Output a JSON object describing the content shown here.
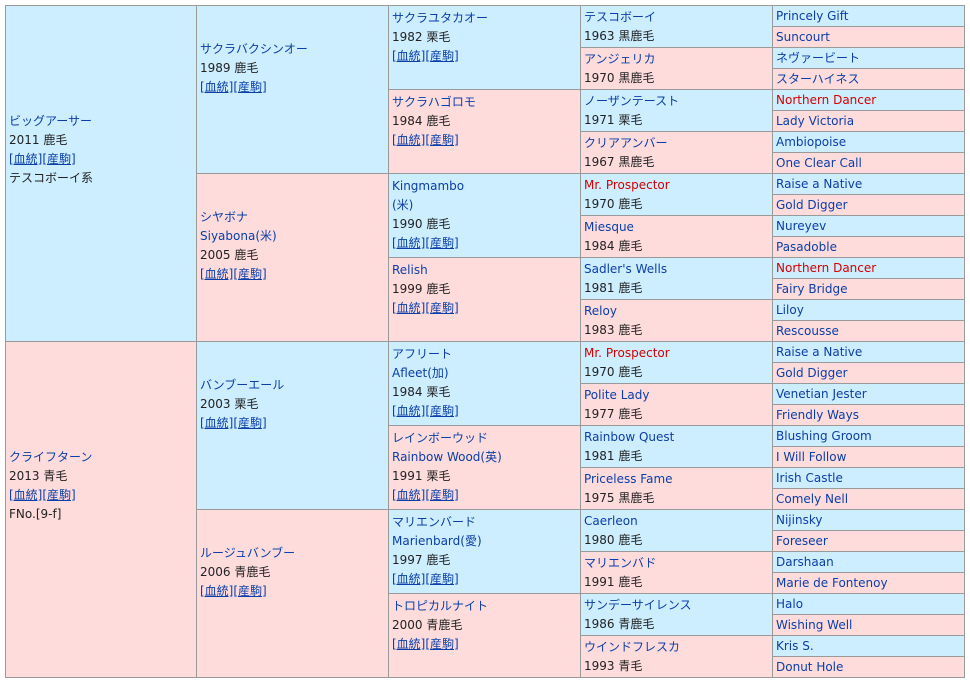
{
  "colors": {
    "male_bg": "#cdeeff",
    "female_bg": "#ffdcdc",
    "link": "#0a3ea8",
    "highlight": "#d40000",
    "border": "#9a9a9a"
  },
  "pedigree": {
    "g1": [
      {
        "name": "ビッグアーサー",
        "year_color": "2011 鹿毛",
        "links": [
          "[血統]",
          "[産駒]"
        ],
        "note": "テスコボーイ系",
        "sex": "m"
      },
      {
        "name": "クライフターン",
        "year_color": "2013 青毛",
        "links": [
          "[血統]",
          "[産駒]"
        ],
        "note": "FNo.[9-f]",
        "sex": "f"
      }
    ],
    "g2": [
      {
        "name": "サクラバクシンオー",
        "year_color": "1989 鹿毛",
        "links": [
          "[血統]",
          "[産駒]"
        ],
        "sex": "m"
      },
      {
        "name": "シヤボナ",
        "alt": "Siyabona(米)",
        "year_color": "2005 鹿毛",
        "links": [
          "[血統]",
          "[産駒]"
        ],
        "sex": "f"
      },
      {
        "name": "バンブーエール",
        "year_color": "2003 栗毛",
        "links": [
          "[血統]",
          "[産駒]"
        ],
        "sex": "m"
      },
      {
        "name": "ルージュバンブー",
        "year_color": "2006 青鹿毛",
        "links": [
          "[血統]",
          "[産駒]"
        ],
        "sex": "f"
      }
    ],
    "g3": [
      {
        "name": "サクラユタカオー",
        "year_color": "1982 栗毛",
        "links": [
          "[血統]",
          "[産駒]"
        ],
        "sex": "m"
      },
      {
        "name": "サクラハゴロモ",
        "year_color": "1984 鹿毛",
        "links": [
          "[血統]",
          "[産駒]"
        ],
        "sex": "f"
      },
      {
        "name": "Kingmambo",
        "alt": "(米)",
        "year_color": "1990 鹿毛",
        "links": [
          "[血統]",
          "[産駒]"
        ],
        "sex": "m"
      },
      {
        "name": "Relish",
        "year_color": "1999 鹿毛",
        "links": [
          "[血統]",
          "[産駒]"
        ],
        "sex": "f"
      },
      {
        "name": "アフリート",
        "alt": "Afleet(加)",
        "year_color": "1984 栗毛",
        "links": [
          "[血統]",
          "[産駒]"
        ],
        "sex": "m"
      },
      {
        "name": "レインボーウッド",
        "alt": "Rainbow Wood(英)",
        "year_color": "1991 栗毛",
        "links": [
          "[血統]",
          "[産駒]"
        ],
        "sex": "f"
      },
      {
        "name": "マリエンバード",
        "alt": "Marienbard(愛)",
        "year_color": "1997 鹿毛",
        "links": [
          "[血統]",
          "[産駒]"
        ],
        "sex": "m"
      },
      {
        "name": "トロピカルナイト",
        "year_color": "2000 青鹿毛",
        "links": [
          "[血統]",
          "[産駒]"
        ],
        "sex": "f"
      }
    ],
    "g4": [
      {
        "name": "テスコボーイ",
        "year_color": "1963 黒鹿毛",
        "sex": "m"
      },
      {
        "name": "アンジェリカ",
        "year_color": "1970 黒鹿毛",
        "sex": "f"
      },
      {
        "name": "ノーザンテースト",
        "year_color": "1971 栗毛",
        "sex": "m"
      },
      {
        "name": "クリアアンバー",
        "year_color": "1967 黒鹿毛",
        "sex": "f"
      },
      {
        "name": "Mr. Prospector",
        "year_color": "1970 鹿毛",
        "sex": "m",
        "red": true
      },
      {
        "name": "Miesque",
        "year_color": "1984 鹿毛",
        "sex": "f"
      },
      {
        "name": "Sadler's Wells",
        "year_color": "1981 鹿毛",
        "sex": "m"
      },
      {
        "name": "Reloy",
        "year_color": "1983 鹿毛",
        "sex": "f"
      },
      {
        "name": "Mr. Prospector",
        "year_color": "1970 鹿毛",
        "sex": "m",
        "red": true
      },
      {
        "name": "Polite Lady",
        "year_color": "1977 鹿毛",
        "sex": "f"
      },
      {
        "name": "Rainbow Quest",
        "year_color": "1981 鹿毛",
        "sex": "m"
      },
      {
        "name": "Priceless Fame",
        "year_color": "1975 黒鹿毛",
        "sex": "f"
      },
      {
        "name": "Caerleon",
        "year_color": "1980 鹿毛",
        "sex": "m"
      },
      {
        "name": "マリエンバド",
        "year_color": "1991 鹿毛",
        "sex": "f"
      },
      {
        "name": "サンデーサイレンス",
        "year_color": "1986 青鹿毛",
        "sex": "m"
      },
      {
        "name": "ウインドフレスカ",
        "year_color": "1993 青毛",
        "sex": "f"
      }
    ],
    "g5": [
      {
        "name": "Princely Gift",
        "sex": "m"
      },
      {
        "name": "Suncourt",
        "sex": "f"
      },
      {
        "name": "ネヴァービート",
        "sex": "m"
      },
      {
        "name": "スターハイネス",
        "sex": "f"
      },
      {
        "name": "Northern Dancer",
        "sex": "m",
        "red": true
      },
      {
        "name": "Lady Victoria",
        "sex": "f"
      },
      {
        "name": "Ambiopoise",
        "sex": "m"
      },
      {
        "name": "One Clear Call",
        "sex": "f"
      },
      {
        "name": "Raise a Native",
        "sex": "m"
      },
      {
        "name": "Gold Digger",
        "sex": "f"
      },
      {
        "name": "Nureyev",
        "sex": "m"
      },
      {
        "name": "Pasadoble",
        "sex": "f"
      },
      {
        "name": "Northern Dancer",
        "sex": "m",
        "red": true
      },
      {
        "name": "Fairy Bridge",
        "sex": "f"
      },
      {
        "name": "Liloy",
        "sex": "m"
      },
      {
        "name": "Rescousse",
        "sex": "f"
      },
      {
        "name": "Raise a Native",
        "sex": "m"
      },
      {
        "name": "Gold Digger",
        "sex": "f"
      },
      {
        "name": "Venetian Jester",
        "sex": "m"
      },
      {
        "name": "Friendly Ways",
        "sex": "f"
      },
      {
        "name": "Blushing Groom",
        "sex": "m"
      },
      {
        "name": "I Will Follow",
        "sex": "f"
      },
      {
        "name": "Irish Castle",
        "sex": "m"
      },
      {
        "name": "Comely Nell",
        "sex": "f"
      },
      {
        "name": "Nijinsky",
        "sex": "m"
      },
      {
        "name": "Foreseer",
        "sex": "f"
      },
      {
        "name": "Darshaan",
        "sex": "m"
      },
      {
        "name": "Marie de Fontenoy",
        "sex": "f"
      },
      {
        "name": "Halo",
        "sex": "m"
      },
      {
        "name": "Wishing Well",
        "sex": "f"
      },
      {
        "name": "Kris S.",
        "sex": "m"
      },
      {
        "name": "Donut Hole",
        "sex": "f"
      }
    ]
  }
}
